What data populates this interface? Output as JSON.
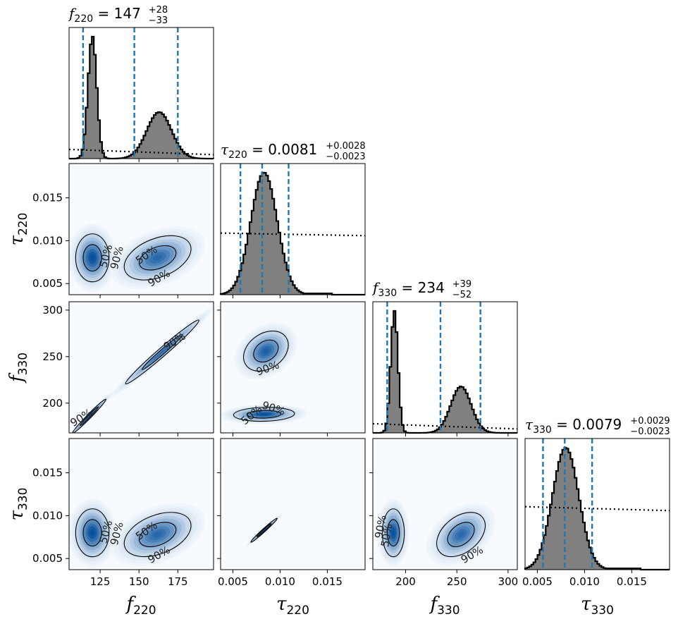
{
  "chart_data": {
    "type": "corner",
    "parameters": [
      {
        "id": "f220",
        "symbol": "f",
        "subscript": "220",
        "title_value": "147",
        "err_plus": "+28",
        "err_minus": "−33",
        "range": [
          105,
          198
        ],
        "ticks": [
          "125",
          "150",
          "175"
        ],
        "tick_values": [
          125,
          150,
          175
        ],
        "quantiles": [
          114,
          147,
          175
        ]
      },
      {
        "id": "tau220",
        "symbol": "τ",
        "subscript": "220",
        "title_value": "0.0081",
        "err_plus": "+0.0028",
        "err_minus": "−0.0023",
        "range": [
          0.0037,
          0.019
        ],
        "ticks": [
          "0.005",
          "0.010",
          "0.015"
        ],
        "tick_values": [
          0.005,
          0.01,
          0.015
        ],
        "quantiles": [
          0.0058,
          0.0081,
          0.0109
        ]
      },
      {
        "id": "f330",
        "symbol": "f",
        "subscript": "330",
        "title_value": "234",
        "err_plus": "+39",
        "err_minus": "−52",
        "range": [
          168,
          309
        ],
        "ticks": [
          "200",
          "250",
          "300"
        ],
        "tick_values": [
          200,
          250,
          300
        ],
        "quantiles": [
          182,
          234,
          273
        ]
      },
      {
        "id": "tau330",
        "symbol": "τ",
        "subscript": "330",
        "title_value": "0.0079",
        "err_plus": "+0.0029",
        "err_minus": "−0.0023",
        "range": [
          0.0037,
          0.019
        ],
        "ticks": [
          "0.005",
          "0.010",
          "0.015"
        ],
        "tick_values": [
          0.005,
          0.01,
          0.015
        ],
        "quantiles": [
          0.0056,
          0.0079,
          0.0108
        ]
      }
    ],
    "histograms": [
      {
        "param": "f220",
        "modes": [
          {
            "mean": 120,
            "sd": 2.8,
            "amp": 1.0
          },
          {
            "mean": 163,
            "sd": 8,
            "amp": 0.38
          }
        ],
        "prior": {
          "left": 0.07,
          "right": 0.03
        }
      },
      {
        "param": "tau220",
        "modes": [
          {
            "mean": 0.0083,
            "sd": 0.0014,
            "amp": 1.0
          }
        ],
        "tail": {
          "start": 0.0108,
          "end": 0.0155,
          "level": 0.01
        },
        "prior": {
          "left": 0.47,
          "right": 0.45
        }
      },
      {
        "param": "f330",
        "modes": [
          {
            "mean": 189,
            "sd": 3.5,
            "amp": 1.0
          },
          {
            "mean": 254,
            "sd": 10,
            "amp": 0.38
          }
        ],
        "prior": {
          "left": 0.07,
          "right": 0.03
        }
      },
      {
        "param": "tau330",
        "modes": [
          {
            "mean": 0.008,
            "sd": 0.0014,
            "amp": 1.0
          }
        ],
        "tail": {
          "start": 0.0108,
          "end": 0.016,
          "level": 0.01
        },
        "prior": {
          "left": 0.48,
          "right": 0.45
        }
      }
    ],
    "contour_levels": [
      "50%",
      "90%"
    ],
    "pairs": [
      {
        "x": "f220",
        "y": "tau220",
        "blobs": [
          {
            "cx": 120,
            "cy": 0.008,
            "sx": 5,
            "sy": 0.0013,
            "rho": 0,
            "w": 1.0
          },
          {
            "cx": 162,
            "cy": 0.008,
            "sx": 10,
            "sy": 0.0012,
            "rho": 0.4,
            "w": 0.85
          }
        ]
      },
      {
        "x": "f220",
        "y": "f330",
        "blobs": [
          {
            "cx": 118,
            "cy": 186,
            "sx": 5,
            "sy": 8.5,
            "rho": 0.985,
            "w": 1.0
          },
          {
            "cx": 165,
            "cy": 255,
            "sx": 11,
            "sy": 16,
            "rho": 0.985,
            "w": 0.85
          }
        ]
      },
      {
        "x": "tau220",
        "y": "f330",
        "blobs": [
          {
            "cx": 0.0085,
            "cy": 256,
            "sx": 0.0011,
            "sy": 10,
            "rho": 0.3,
            "w": 0.9
          },
          {
            "cx": 0.0083,
            "cy": 188,
            "sx": 0.0015,
            "sy": 3.5,
            "rho": 0.1,
            "w": 1.0
          }
        ]
      },
      {
        "x": "f220",
        "y": "tau330",
        "blobs": [
          {
            "cx": 120,
            "cy": 0.008,
            "sx": 5,
            "sy": 0.0013,
            "rho": 0,
            "w": 1.0
          },
          {
            "cx": 162,
            "cy": 0.0078,
            "sx": 10,
            "sy": 0.0012,
            "rho": 0.4,
            "w": 0.85
          }
        ]
      },
      {
        "x": "tau220",
        "y": "tau330",
        "blobs": [
          {
            "cx": 0.0083,
            "cy": 0.0083,
            "sx": 0.00065,
            "sy": 0.00065,
            "rho": 0.985,
            "w": 1.0
          }
        ]
      },
      {
        "x": "f330",
        "y": "tau330",
        "blobs": [
          {
            "cx": 188,
            "cy": 0.008,
            "sx": 5,
            "sy": 0.0013,
            "rho": 0,
            "w": 1.0
          },
          {
            "cx": 254,
            "cy": 0.0078,
            "sx": 11,
            "sy": 0.0012,
            "rho": 0.4,
            "w": 0.85
          }
        ]
      }
    ],
    "contour_labels": [
      {
        "panel": "tau220|f220",
        "text": "50%",
        "x": 129,
        "y": 0.0082,
        "rot": -75
      },
      {
        "panel": "tau220|f220",
        "text": "90%",
        "x": 136,
        "y": 0.008,
        "rot": -75
      },
      {
        "panel": "tau220|f220",
        "text": "50%",
        "x": 155,
        "y": 0.0083,
        "rot": -35
      },
      {
        "panel": "tau220|f220",
        "text": "90%",
        "x": 163,
        "y": 0.0056,
        "rot": -30
      },
      {
        "panel": "f330|f220",
        "text": "90%",
        "x": 173,
        "y": 266,
        "rot": -32
      },
      {
        "panel": "f330|f220",
        "text": "90%",
        "x": 113,
        "y": 184,
        "rot": -32
      },
      {
        "panel": "f330|tau220",
        "text": "90%",
        "x": 0.0087,
        "y": 237,
        "rot": -20
      },
      {
        "panel": "f330|tau220",
        "text": "90%",
        "x": 0.0093,
        "y": 194,
        "rot": 18
      },
      {
        "panel": "f330|tau220",
        "text": "50%",
        "x": 0.007,
        "y": 187,
        "rot": -40
      },
      {
        "panel": "tau330|f220",
        "text": "50%",
        "x": 129,
        "y": 0.0081,
        "rot": -75
      },
      {
        "panel": "tau330|f220",
        "text": "90%",
        "x": 136,
        "y": 0.0079,
        "rot": -75
      },
      {
        "panel": "tau330|f220",
        "text": "50%",
        "x": 155,
        "y": 0.0082,
        "rot": -35
      },
      {
        "panel": "tau330|f220",
        "text": "90%",
        "x": 163,
        "y": 0.0054,
        "rot": -30
      },
      {
        "panel": "tau330|f330",
        "text": "90%",
        "x": 176,
        "y": 0.0087,
        "rot": -80
      },
      {
        "panel": "tau330|f330",
        "text": "50%",
        "x": 182,
        "y": 0.0077,
        "rot": -80
      },
      {
        "panel": "tau330|f330",
        "text": "90%",
        "x": 265,
        "y": 0.0054,
        "rot": -30
      }
    ],
    "colors": {
      "histogram_fill": "#808080",
      "histogram_edge": "#000000",
      "quantile_line": "#1f77b4",
      "prior_line": "#000000",
      "density_low": "#f7fbff",
      "density_high": "#08519c",
      "contour": "#000000"
    }
  }
}
